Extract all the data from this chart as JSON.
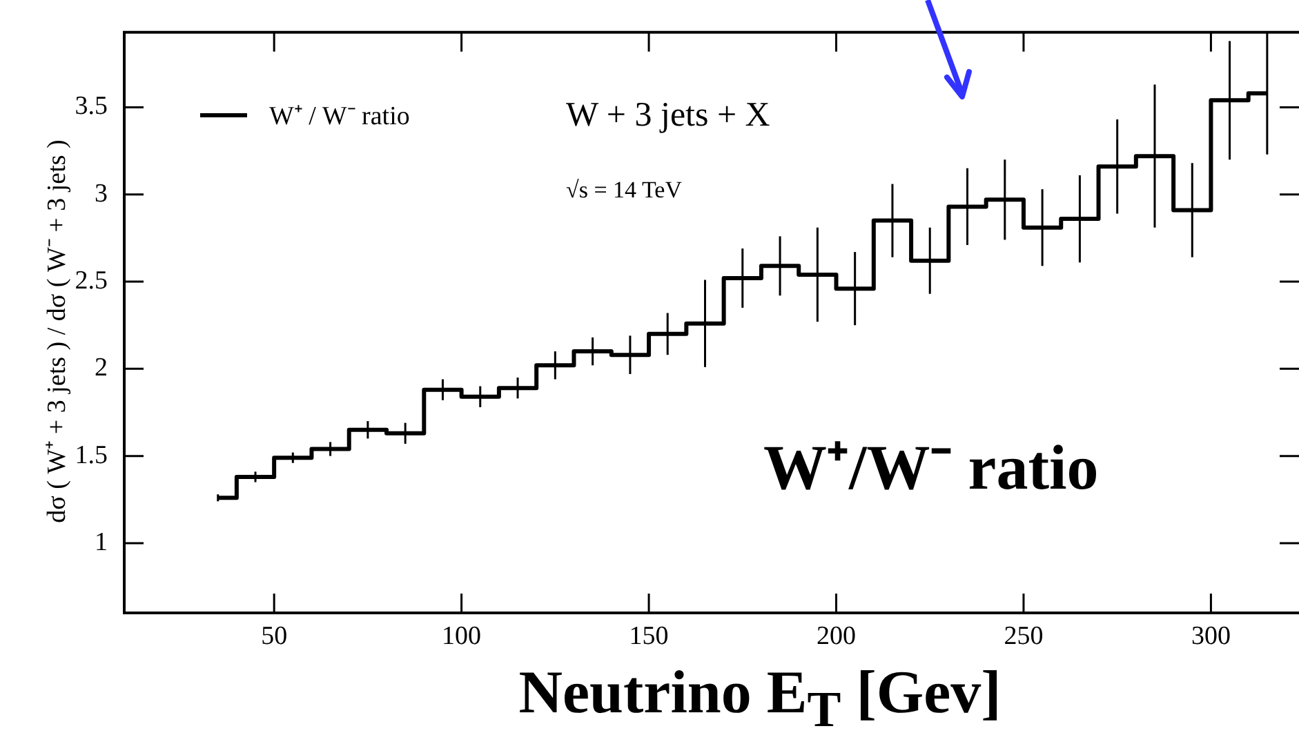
{
  "chart_data": {
    "type": "step",
    "xlabel": "Neutrino E$_{T}$ [Gev]",
    "ylabel": "dσ ( W⁺ + 3 jets )   /   dσ ( W⁻ + 3 jets )",
    "x": [
      35,
      45,
      55,
      65,
      75,
      85,
      95,
      105,
      115,
      125,
      135,
      145,
      155,
      165,
      175,
      185,
      195,
      205,
      215,
      225,
      235,
      245,
      255,
      265,
      275,
      285,
      295,
      305,
      315
    ],
    "series": [
      {
        "name": "W⁺  /  W⁻  ratio",
        "color": "#000000",
        "values": [
          1.26,
          1.38,
          1.49,
          1.54,
          1.65,
          1.63,
          1.88,
          1.84,
          1.89,
          2.02,
          2.1,
          2.08,
          2.2,
          2.26,
          2.52,
          2.59,
          2.54,
          2.46,
          2.85,
          2.62,
          2.93,
          2.97,
          2.81,
          2.86,
          3.16,
          3.22,
          2.91,
          3.54,
          3.58
        ],
        "errors": [
          0.02,
          0.03,
          0.03,
          0.04,
          0.05,
          0.06,
          0.06,
          0.06,
          0.06,
          0.08,
          0.08,
          0.11,
          0.12,
          0.25,
          0.17,
          0.17,
          0.27,
          0.21,
          0.21,
          0.19,
          0.22,
          0.23,
          0.22,
          0.25,
          0.27,
          0.41,
          0.27,
          0.34,
          0.35
        ]
      }
    ],
    "xlim": [
      10,
      323.5
    ],
    "ylim": [
      0.6,
      3.93
    ],
    "xticks": [
      50,
      100,
      150,
      200,
      250,
      300
    ],
    "yticks": [
      1,
      1.5,
      2,
      2.5,
      3,
      3.5
    ],
    "grid": false,
    "legend": "top left",
    "annotations": [
      "W + 3 jets + X",
      "√s  =  14 TeV",
      "W⁺/W⁻  ratio"
    ]
  }
}
